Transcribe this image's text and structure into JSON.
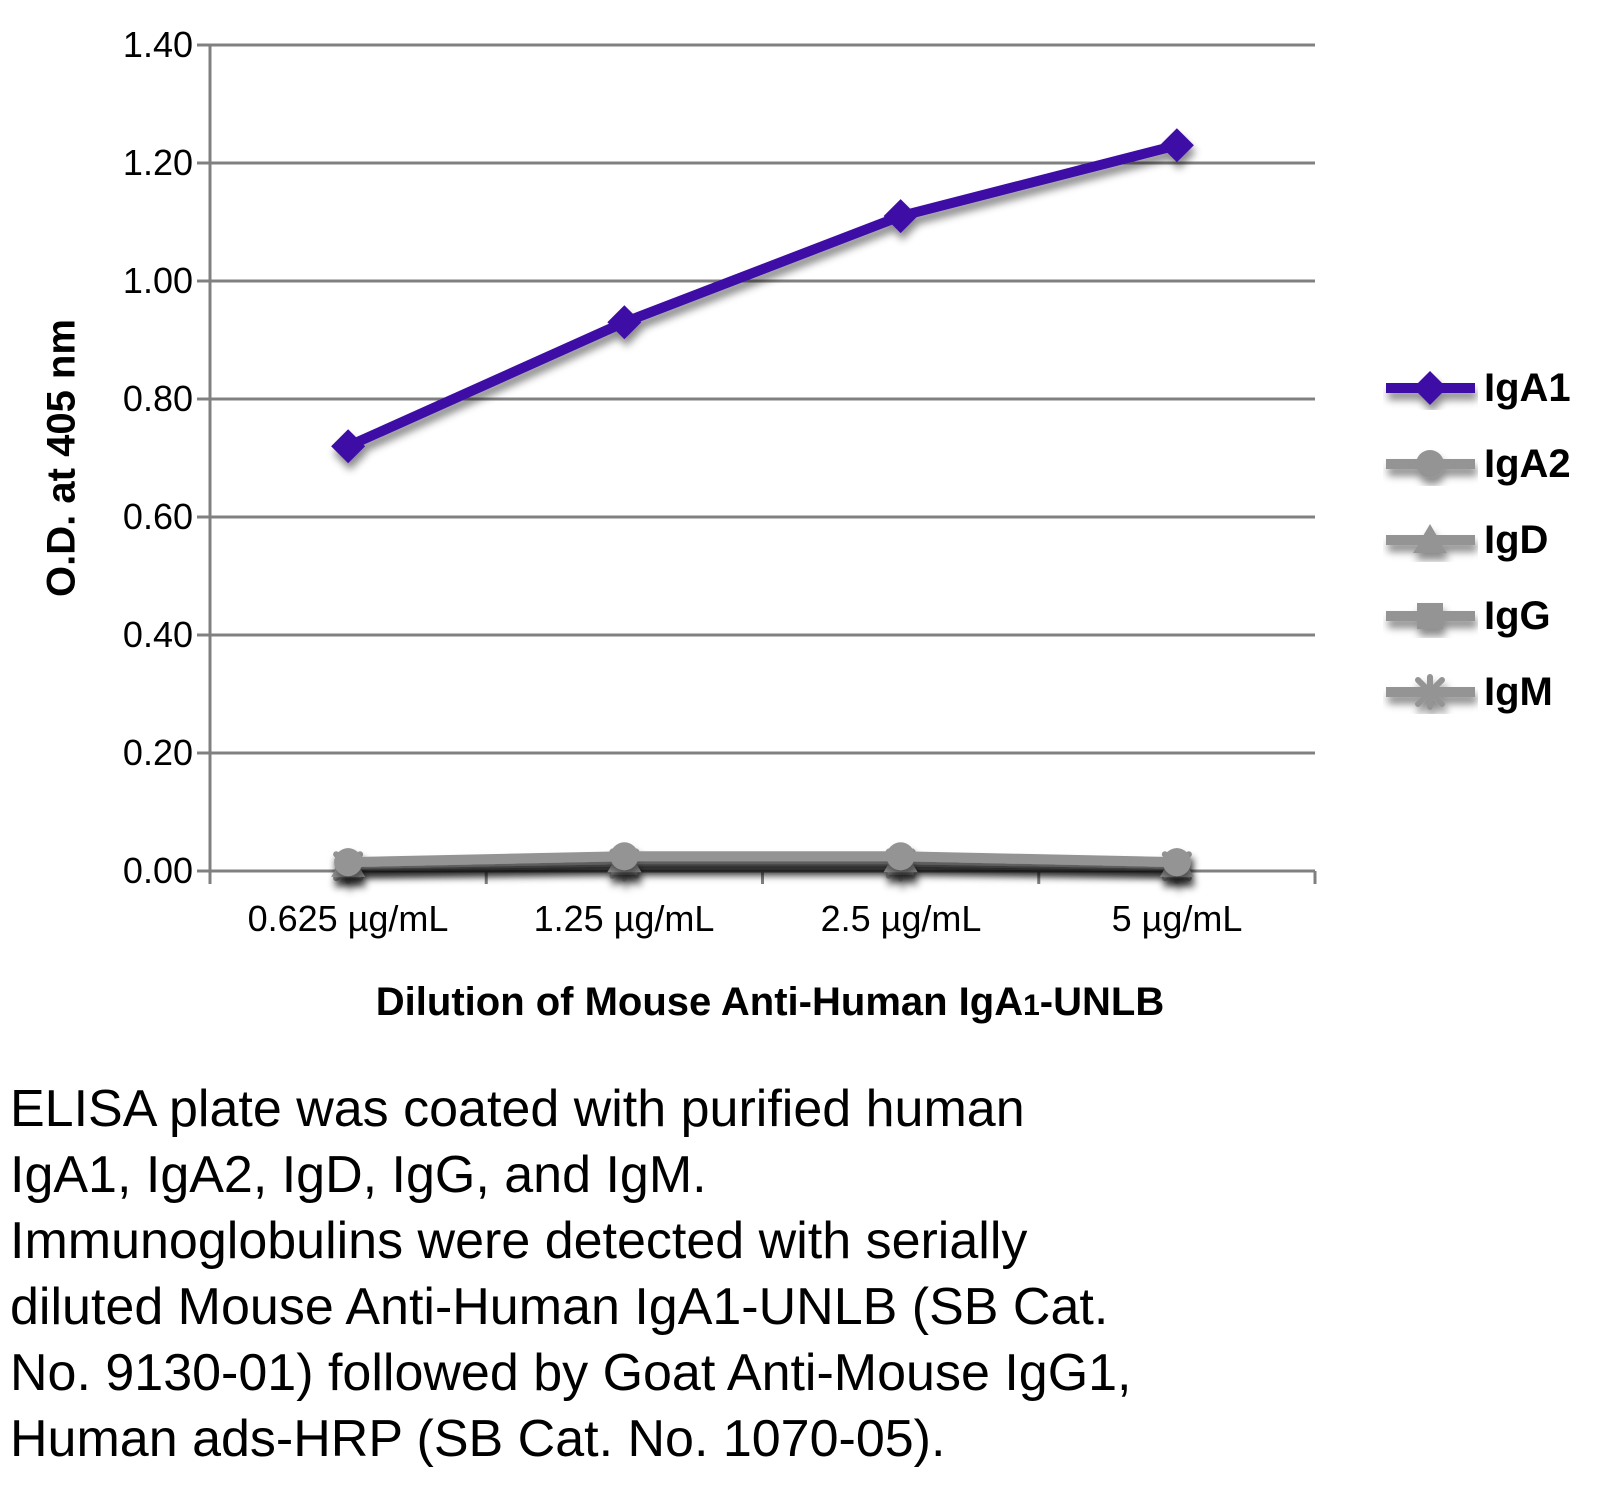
{
  "colors": {
    "iga1_purple": "#3E11A5",
    "series_gray": "#949494",
    "grid_gray": "#808080",
    "text": "#000000"
  },
  "chart_data": {
    "type": "line",
    "title": "",
    "ylabel": "O.D. at 405 nm",
    "xlabel": "Dilution of Mouse Anti-Human IgA1-UNLB",
    "xlabel_parts": {
      "pre": "Dilution of Mouse Anti-Human IgA",
      "sub": "1",
      "post": "-UNLB"
    },
    "categories": [
      "0.625 µg/mL",
      "1.25 µg/mL",
      "2.5 µg/mL",
      "5 µg/mL"
    ],
    "ylim": [
      0,
      1.4
    ],
    "ytick_step": 0.2,
    "ytick_labels": [
      "1.40",
      "1.20",
      "1.00",
      "0.80",
      "0.60",
      "0.40",
      "0.20",
      "0.00"
    ],
    "grid": true,
    "legend_position": "right",
    "series": [
      {
        "name": "IgA1",
        "marker": "diamond",
        "color": "#3E11A5",
        "values": [
          0.72,
          0.93,
          1.11,
          1.23
        ]
      },
      {
        "name": "IgA2",
        "marker": "circle",
        "color": "#949494",
        "values": [
          0.015,
          0.025,
          0.025,
          0.015
        ]
      },
      {
        "name": "IgD",
        "marker": "triangle",
        "color": "#949494",
        "values": [
          0.012,
          0.02,
          0.02,
          0.012
        ]
      },
      {
        "name": "IgG",
        "marker": "square",
        "color": "#949494",
        "values": [
          0.01,
          0.016,
          0.016,
          0.01
        ]
      },
      {
        "name": "IgM",
        "marker": "asterisk",
        "color": "#949494",
        "values": [
          0.008,
          0.012,
          0.012,
          0.008
        ]
      }
    ]
  },
  "legend": {
    "items": [
      {
        "label": "IgA1"
      },
      {
        "label": "IgA2"
      },
      {
        "label": "IgD"
      },
      {
        "label": "IgG"
      },
      {
        "label": "IgM"
      }
    ]
  },
  "caption": {
    "lines": [
      "ELISA plate was coated with purified human",
      "IgA1, IgA2, IgD, IgG, and IgM.",
      "Immunoglobulins were detected with serially",
      "diluted Mouse Anti-Human IgA1-UNLB (SB Cat.",
      "No. 9130-01) followed by Goat Anti-Mouse IgG1,",
      "Human ads-HRP (SB Cat. No. 1070-05)."
    ]
  }
}
